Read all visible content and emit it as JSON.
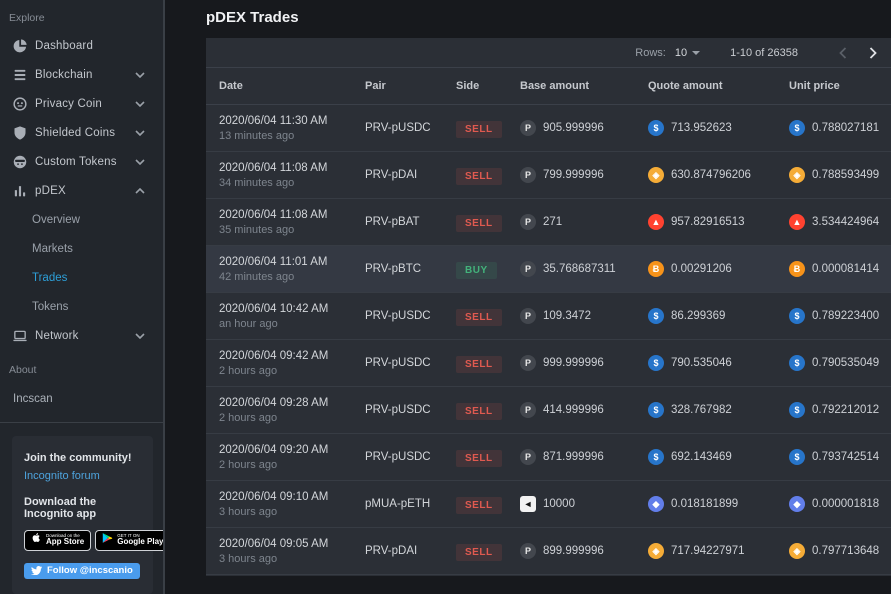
{
  "header": {
    "title": "pDEX Trades"
  },
  "sidebar": {
    "explore_label": "Explore",
    "items": [
      {
        "label": "Dashboard",
        "icon": "dashboard-icon"
      },
      {
        "label": "Blockchain",
        "icon": "blockchain-icon",
        "chevron": "down"
      },
      {
        "label": "Privacy Coin",
        "icon": "privacy-coin-icon",
        "chevron": "down"
      },
      {
        "label": "Shielded Coins",
        "icon": "shielded-coins-icon",
        "chevron": "down"
      },
      {
        "label": "Custom Tokens",
        "icon": "custom-tokens-icon",
        "chevron": "down"
      },
      {
        "label": "pDEX",
        "icon": "pdex-icon",
        "chevron": "up",
        "expanded": true,
        "subitems": [
          {
            "label": "Overview"
          },
          {
            "label": "Markets"
          },
          {
            "label": "Trades",
            "active": true
          },
          {
            "label": "Tokens"
          }
        ]
      },
      {
        "label": "Network",
        "icon": "network-icon",
        "chevron": "down"
      }
    ],
    "about_label": "About",
    "about_item": "Incscan",
    "community": {
      "join": "Join the community!",
      "forum_link": "Incognito forum",
      "download": "Download the Incognito app",
      "app_store": {
        "line1": "Download on the",
        "line2": "App Store"
      },
      "google_play": {
        "line1": "GET IT ON",
        "line2": "Google Play"
      },
      "follow": "Follow @incscanio"
    }
  },
  "toolbar": {
    "rows_label": "Rows:",
    "rows_value": "10",
    "range": "1-10 of 26358"
  },
  "table": {
    "columns": [
      "Date",
      "Pair",
      "Side",
      "Base amount",
      "Quote amount",
      "Unit price"
    ],
    "rows": [
      {
        "date": "2020/06/04 11:30 AM",
        "relative": "13 minutes ago",
        "pair": "PRV-pUSDC",
        "side": "SELL",
        "base": {
          "coin": "PRV",
          "value": "905.999996"
        },
        "quote": {
          "coin": "pUSDC",
          "value": "713.952623"
        },
        "unit": {
          "coin": "pUSDC",
          "value": "0.788027181"
        }
      },
      {
        "date": "2020/06/04 11:08 AM",
        "relative": "34 minutes ago",
        "pair": "PRV-pDAI",
        "side": "SELL",
        "base": {
          "coin": "PRV",
          "value": "799.999996"
        },
        "quote": {
          "coin": "pDAI",
          "value": "630.874796206"
        },
        "unit": {
          "coin": "pDAI",
          "value": "0.788593499"
        }
      },
      {
        "date": "2020/06/04 11:08 AM",
        "relative": "35 minutes ago",
        "pair": "PRV-pBAT",
        "side": "SELL",
        "base": {
          "coin": "PRV",
          "value": "271"
        },
        "quote": {
          "coin": "pBAT",
          "value": "957.82916513"
        },
        "unit": {
          "coin": "pBAT",
          "value": "3.534424964"
        }
      },
      {
        "date": "2020/06/04 11:01 AM",
        "relative": "42 minutes ago",
        "pair": "PRV-pBTC",
        "side": "BUY",
        "highlight": true,
        "base": {
          "coin": "PRV",
          "value": "35.768687311"
        },
        "quote": {
          "coin": "pBTC",
          "value": "0.00291206"
        },
        "unit": {
          "coin": "pBTC",
          "value": "0.000081414"
        }
      },
      {
        "date": "2020/06/04 10:42 AM",
        "relative": "an hour ago",
        "pair": "PRV-pUSDC",
        "side": "SELL",
        "base": {
          "coin": "PRV",
          "value": "109.3472"
        },
        "quote": {
          "coin": "pUSDC",
          "value": "86.299369"
        },
        "unit": {
          "coin": "pUSDC",
          "value": "0.789223400"
        }
      },
      {
        "date": "2020/06/04 09:42 AM",
        "relative": "2 hours ago",
        "pair": "PRV-pUSDC",
        "side": "SELL",
        "base": {
          "coin": "PRV",
          "value": "999.999996"
        },
        "quote": {
          "coin": "pUSDC",
          "value": "790.535046"
        },
        "unit": {
          "coin": "pUSDC",
          "value": "0.790535049"
        }
      },
      {
        "date": "2020/06/04 09:28 AM",
        "relative": "2 hours ago",
        "pair": "PRV-pUSDC",
        "side": "SELL",
        "base": {
          "coin": "PRV",
          "value": "414.999996"
        },
        "quote": {
          "coin": "pUSDC",
          "value": "328.767982"
        },
        "unit": {
          "coin": "pUSDC",
          "value": "0.792212012"
        }
      },
      {
        "date": "2020/06/04 09:20 AM",
        "relative": "2 hours ago",
        "pair": "PRV-pUSDC",
        "side": "SELL",
        "base": {
          "coin": "PRV",
          "value": "871.999996"
        },
        "quote": {
          "coin": "pUSDC",
          "value": "692.143469"
        },
        "unit": {
          "coin": "pUSDC",
          "value": "0.793742514"
        }
      },
      {
        "date": "2020/06/04 09:10 AM",
        "relative": "3 hours ago",
        "pair": "pMUA-pETH",
        "side": "SELL",
        "base": {
          "coin": "pMUA",
          "value": "10000"
        },
        "quote": {
          "coin": "pETH",
          "value": "0.018181899"
        },
        "unit": {
          "coin": "pETH",
          "value": "0.000001818"
        }
      },
      {
        "date": "2020/06/04 09:05 AM",
        "relative": "3 hours ago",
        "pair": "PRV-pDAI",
        "side": "SELL",
        "base": {
          "coin": "PRV",
          "value": "899.999996"
        },
        "quote": {
          "coin": "pDAI",
          "value": "717.94227971"
        },
        "unit": {
          "coin": "pDAI",
          "value": "0.797713648"
        }
      }
    ]
  },
  "coins": {
    "PRV": {
      "glyph": "P",
      "color": "#43474e",
      "text": "#e8e8e8"
    },
    "pUSDC": {
      "glyph": "$",
      "color": "#2775ca",
      "text": "#ffffff"
    },
    "pDAI": {
      "glyph": "◈",
      "color": "#f5ac37",
      "text": "#ffffff"
    },
    "pBAT": {
      "glyph": "▲",
      "color": "#ff4230",
      "text": "#ffffff"
    },
    "pBTC": {
      "glyph": "Ƀ",
      "color": "#f7931a",
      "text": "#ffffff"
    },
    "pETH": {
      "glyph": "◆",
      "color": "#627eea",
      "text": "#ffffff"
    },
    "pMUA": {
      "glyph": "◄",
      "color": "#f2f2f2",
      "text": "#141414",
      "shape": "square"
    }
  },
  "colors": {
    "page_bg": "#17191d",
    "sidebar_bg": "#22262c",
    "card_bg": "#2b2f36",
    "accent_blue": "#2d9fd8",
    "link_blue": "#4da3dd",
    "twitter_blue": "#4a9ced",
    "sell_red": "#e05a50",
    "buy_green": "#43b27b"
  }
}
